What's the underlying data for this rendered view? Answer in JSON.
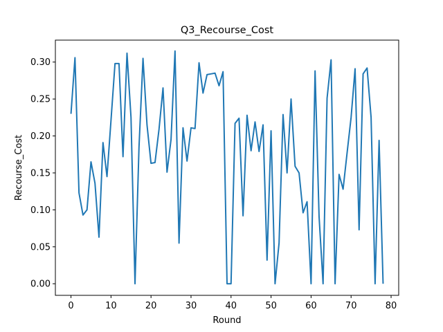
{
  "chart_data": {
    "type": "line",
    "title": "Q3_Recourse_Cost",
    "xlabel": "Round",
    "ylabel": "Recourse_Cost",
    "xlim": [
      -3.9,
      81.9
    ],
    "ylim": [
      -0.0157,
      0.3297
    ],
    "xticks": [
      0,
      10,
      20,
      30,
      40,
      50,
      60,
      70,
      80
    ],
    "xtick_labels": [
      "0",
      "10",
      "20",
      "30",
      "40",
      "50",
      "60",
      "70",
      "80"
    ],
    "yticks": [
      0.0,
      0.05,
      0.1,
      0.15,
      0.2,
      0.25,
      0.3
    ],
    "ytick_labels": [
      "0.00",
      "0.05",
      "0.10",
      "0.15",
      "0.20",
      "0.25",
      "0.30"
    ],
    "grid": false,
    "legend": "none",
    "line_color": "#1f77b4",
    "series": [
      {
        "x": [
          0,
          1,
          2,
          3,
          4,
          5,
          6,
          7,
          8,
          9,
          10,
          11,
          12,
          13,
          14,
          15,
          16,
          17,
          18,
          19,
          20,
          21,
          22,
          23,
          24,
          25,
          26,
          27,
          28,
          29,
          30,
          31,
          32,
          33,
          34,
          35,
          36,
          37,
          38,
          39,
          40,
          41,
          42,
          43,
          44,
          45,
          46,
          47,
          48,
          49,
          50,
          51,
          52,
          53,
          54,
          55,
          56,
          57,
          58,
          59,
          60,
          61,
          62,
          63,
          64,
          65,
          66,
          67,
          68,
          69,
          70,
          71,
          72,
          73,
          74,
          75,
          76,
          77,
          78
        ],
        "values": [
          0.23,
          0.306,
          0.123,
          0.093,
          0.1,
          0.165,
          0.136,
          0.063,
          0.191,
          0.145,
          0.221,
          0.298,
          0.298,
          0.172,
          0.312,
          0.225,
          0.0,
          0.185,
          0.305,
          0.215,
          0.163,
          0.164,
          0.209,
          0.265,
          0.151,
          0.195,
          0.315,
          0.055,
          0.211,
          0.166,
          0.211,
          0.21,
          0.299,
          0.258,
          0.283,
          0.284,
          0.285,
          0.268,
          0.287,
          0.0,
          0.0,
          0.217,
          0.224,
          0.092,
          0.228,
          0.18,
          0.219,
          0.179,
          0.215,
          0.032,
          0.207,
          0.0,
          0.055,
          0.229,
          0.15,
          0.25,
          0.159,
          0.15,
          0.096,
          0.111,
          0.0,
          0.288,
          0.091,
          0.0,
          0.251,
          0.303,
          0.0,
          0.148,
          0.128,
          0.177,
          0.225,
          0.291,
          0.073,
          0.284,
          0.292,
          0.225,
          0.0,
          0.194,
          0.0
        ]
      }
    ]
  }
}
